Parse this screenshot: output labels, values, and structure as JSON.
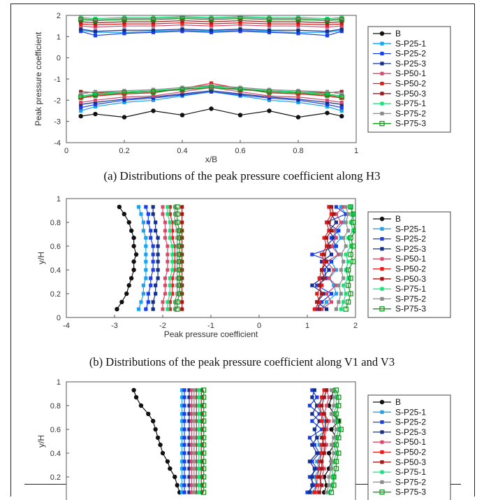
{
  "captions": {
    "a": "(a) Distributions of the peak pressure coefficient along H3",
    "b": "(b) Distributions of the peak pressure coefficient along V1 and V3"
  },
  "legend_entries": [
    "B",
    "S-P25-1",
    "S-P25-2",
    "S-P25-3",
    "S-P50-1",
    "S-P50-2",
    "S-P50-3",
    "S-P75-1",
    "S-P75-2",
    "S-P75-3"
  ],
  "series_colors": {
    "B": "#111111",
    "S-P25-1": "#1aa3f0",
    "S-P25-2": "#1a3fe8",
    "S-P25-3": "#15308c",
    "S-P50-1": "#d4486a",
    "S-P50-2": "#e31b1b",
    "S-P50-3": "#a01818",
    "S-P75-1": "#18e07a",
    "S-P75-2": "#8c8c8c",
    "S-P75-3": "#119a1a"
  },
  "chart_data": [
    {
      "type": "line",
      "panel": "a",
      "xlabel": "x/B",
      "ylabel": "Peak pressure coefficient",
      "xlim": [
        0,
        1
      ],
      "ylim": [
        -4,
        2
      ],
      "xticks": [
        "0",
        "0.2",
        "0.4",
        "0.6",
        "0.8",
        "1"
      ],
      "yticks": [
        "-4",
        "-3",
        "-2",
        "-1",
        "0",
        "1",
        "2"
      ],
      "x": [
        0.05,
        0.1,
        0.2,
        0.3,
        0.4,
        0.5,
        0.6,
        0.7,
        0.8,
        0.9,
        0.95
      ],
      "series": [
        {
          "name": "B",
          "neg": [
            -2.75,
            -2.65,
            -2.8,
            -2.5,
            -2.7,
            -2.4,
            -2.7,
            -2.5,
            -2.8,
            -2.6,
            -2.75
          ],
          "pos": null
        },
        {
          "name": "S-P25-1",
          "neg": [
            -2.5,
            -2.3,
            -2.1,
            -2.0,
            -1.8,
            -1.6,
            -1.8,
            -2.0,
            -2.1,
            -2.3,
            -2.5
          ],
          "pos": [
            1.3,
            1.2,
            1.2,
            1.25,
            1.3,
            1.25,
            1.3,
            1.25,
            1.2,
            1.2,
            1.3
          ]
        },
        {
          "name": "S-P25-2",
          "neg": [
            -2.35,
            -2.2,
            -2.0,
            -1.9,
            -1.75,
            -1.6,
            -1.75,
            -1.9,
            -2.0,
            -2.2,
            -2.35
          ],
          "pos": [
            1.25,
            1.05,
            1.15,
            1.2,
            1.25,
            1.2,
            1.25,
            1.2,
            1.15,
            1.05,
            1.25
          ]
        },
        {
          "name": "S-P25-3",
          "neg": [
            -2.2,
            -2.1,
            -1.95,
            -1.85,
            -1.7,
            -1.55,
            -1.7,
            -1.85,
            -1.95,
            -2.1,
            -2.2
          ],
          "pos": [
            1.35,
            1.25,
            1.3,
            1.3,
            1.35,
            1.3,
            1.35,
            1.3,
            1.3,
            1.25,
            1.35
          ]
        },
        {
          "name": "S-P50-1",
          "neg": [
            -2.1,
            -2.0,
            -1.85,
            -1.8,
            -1.6,
            -1.4,
            -1.6,
            -1.8,
            -1.85,
            -2.0,
            -2.1
          ],
          "pos": [
            1.5,
            1.45,
            1.5,
            1.5,
            1.55,
            1.5,
            1.55,
            1.5,
            1.5,
            1.45,
            1.5
          ]
        },
        {
          "name": "S-P50-2",
          "neg": [
            -1.9,
            -1.8,
            -1.7,
            -1.65,
            -1.45,
            -1.2,
            -1.45,
            -1.65,
            -1.7,
            -1.8,
            -1.9
          ],
          "pos": [
            1.6,
            1.55,
            1.6,
            1.6,
            1.65,
            1.6,
            1.65,
            1.6,
            1.6,
            1.55,
            1.6
          ]
        },
        {
          "name": "S-P50-3",
          "neg": [
            -1.6,
            -1.65,
            -1.6,
            -1.55,
            -1.5,
            -1.3,
            -1.5,
            -1.55,
            -1.6,
            -1.65,
            -1.6
          ],
          "pos": [
            1.7,
            1.65,
            1.7,
            1.7,
            1.75,
            1.7,
            1.75,
            1.7,
            1.7,
            1.65,
            1.7
          ]
        },
        {
          "name": "S-P75-1",
          "neg": [
            -1.8,
            -1.7,
            -1.6,
            -1.55,
            -1.45,
            -1.35,
            -1.45,
            -1.55,
            -1.6,
            -1.7,
            -1.8
          ],
          "pos": [
            1.9,
            1.85,
            1.9,
            1.9,
            1.95,
            1.9,
            1.95,
            1.9,
            1.9,
            1.85,
            1.9
          ]
        },
        {
          "name": "S-P75-2",
          "neg": [
            -1.7,
            -1.6,
            -1.55,
            -1.5,
            -1.4,
            -1.3,
            -1.4,
            -1.5,
            -1.55,
            -1.6,
            -1.7
          ],
          "pos": [
            1.85,
            1.8,
            1.85,
            1.85,
            1.9,
            1.85,
            1.9,
            1.85,
            1.85,
            1.8,
            1.85
          ]
        },
        {
          "name": "S-P75-3",
          "neg": [
            -1.85,
            -1.75,
            -1.65,
            -1.6,
            -1.5,
            -1.4,
            -1.5,
            -1.6,
            -1.65,
            -1.75,
            -1.85
          ],
          "pos": [
            1.8,
            1.75,
            1.8,
            1.8,
            1.85,
            1.8,
            1.85,
            1.8,
            1.8,
            1.75,
            1.8
          ]
        }
      ]
    },
    {
      "type": "line",
      "panel": "b",
      "xlabel": "Peak pressure coefficient",
      "ylabel": "y/H",
      "xlim": [
        -4,
        2
      ],
      "ylim": [
        0,
        1
      ],
      "xticks": [
        "-4",
        "-3",
        "-2",
        "-1",
        "0",
        "1",
        "2"
      ],
      "yticks": [
        "0",
        "0.2",
        "0.4",
        "0.6",
        "0.8",
        "1"
      ],
      "y": [
        0.07,
        0.13,
        0.2,
        0.27,
        0.33,
        0.4,
        0.47,
        0.53,
        0.6,
        0.67,
        0.73,
        0.8,
        0.87,
        0.93
      ],
      "series": [
        {
          "name": "B",
          "neg": [
            -2.95,
            -2.85,
            -2.75,
            -2.7,
            -2.65,
            -2.6,
            -2.6,
            -2.55,
            -2.6,
            -2.6,
            -2.65,
            -2.7,
            -2.8,
            -2.9
          ],
          "pos": null
        },
        {
          "name": "S-P25-1",
          "neg": [
            -2.5,
            -2.45,
            -2.4,
            -2.4,
            -2.35,
            -2.35,
            -2.35,
            -2.35,
            -2.35,
            -2.35,
            -2.4,
            -2.4,
            -2.45,
            -2.5
          ],
          "pos": [
            1.3,
            1.4,
            1.6,
            1.55,
            1.45,
            1.6,
            1.5,
            1.65,
            1.55,
            1.7,
            1.6,
            1.75,
            1.8,
            1.7
          ]
        },
        {
          "name": "S-P25-2",
          "neg": [
            -2.35,
            -2.3,
            -2.3,
            -2.25,
            -2.25,
            -2.2,
            -2.2,
            -2.2,
            -2.2,
            -2.25,
            -2.25,
            -2.3,
            -2.3,
            -2.35
          ],
          "pos": [
            1.2,
            1.3,
            1.5,
            1.2,
            1.4,
            1.35,
            1.5,
            1.1,
            1.6,
            1.5,
            1.65,
            1.4,
            1.8,
            1.6
          ]
        },
        {
          "name": "S-P25-3",
          "neg": [
            -2.2,
            -2.2,
            -2.15,
            -2.15,
            -2.1,
            -2.1,
            -2.1,
            -2.1,
            -2.1,
            -2.1,
            -2.15,
            -2.15,
            -2.2,
            -2.2
          ],
          "pos": [
            1.4,
            1.2,
            1.35,
            1.1,
            1.3,
            1.45,
            1.3,
            1.5,
            1.4,
            1.55,
            1.45,
            1.6,
            1.5,
            1.45
          ]
        },
        {
          "name": "S-P50-1",
          "neg": [
            -2.0,
            -2.0,
            -1.95,
            -1.95,
            -1.95,
            -1.9,
            -1.9,
            -1.9,
            -1.9,
            -1.95,
            -1.95,
            -1.95,
            -2.0,
            -2.0
          ],
          "pos": [
            1.3,
            1.5,
            1.4,
            1.6,
            1.45,
            1.55,
            1.4,
            1.65,
            1.5,
            1.6,
            1.55,
            1.7,
            1.6,
            1.75
          ]
        },
        {
          "name": "S-P50-2",
          "neg": [
            -1.85,
            -1.85,
            -1.8,
            -1.8,
            -1.8,
            -1.75,
            -1.75,
            -1.75,
            -1.75,
            -1.8,
            -1.8,
            -1.8,
            -1.85,
            -1.85
          ],
          "pos": [
            1.15,
            1.25,
            1.2,
            1.3,
            1.25,
            1.3,
            1.35,
            1.3,
            1.4,
            1.35,
            1.45,
            1.4,
            1.5,
            1.45
          ]
        },
        {
          "name": "S-P50-3",
          "neg": [
            -1.6,
            -1.6,
            -1.6,
            -1.6,
            -1.6,
            -1.6,
            -1.6,
            -1.6,
            -1.6,
            -1.6,
            -1.6,
            -1.6,
            -1.6,
            -1.6
          ],
          "pos": [
            1.25,
            1.2,
            1.3,
            1.25,
            1.35,
            1.3,
            1.4,
            1.35,
            1.45,
            1.4,
            1.5,
            1.45,
            1.55,
            1.5
          ]
        },
        {
          "name": "S-P75-1",
          "neg": [
            -1.9,
            -1.9,
            -1.85,
            -1.85,
            -1.85,
            -1.8,
            -1.8,
            -1.8,
            -1.8,
            -1.85,
            -1.85,
            -1.85,
            -1.9,
            -1.9
          ],
          "pos": [
            1.7,
            1.75,
            1.8,
            1.75,
            1.85,
            1.8,
            1.85,
            1.8,
            1.9,
            1.85,
            1.95,
            1.9,
            1.95,
            1.9
          ]
        },
        {
          "name": "S-P75-2",
          "neg": [
            -1.75,
            -1.75,
            -1.7,
            -1.7,
            -1.7,
            -1.7,
            -1.7,
            -1.7,
            -1.7,
            -1.7,
            -1.7,
            -1.75,
            -1.75,
            -1.75
          ],
          "pos": [
            1.6,
            1.65,
            1.7,
            1.65,
            1.75,
            1.7,
            1.75,
            1.7,
            1.8,
            1.75,
            1.85,
            1.8,
            1.85,
            1.8
          ]
        },
        {
          "name": "S-P75-3",
          "neg": [
            -1.7,
            -1.7,
            -1.65,
            -1.65,
            -1.65,
            -1.65,
            -1.65,
            -1.65,
            -1.65,
            -1.65,
            -1.65,
            -1.7,
            -1.7,
            -1.7
          ],
          "pos": [
            1.8,
            1.85,
            1.9,
            1.85,
            1.9,
            1.85,
            1.95,
            1.9,
            1.95,
            1.9,
            2.0,
            1.95,
            1.95,
            1.9
          ]
        }
      ]
    },
    {
      "type": "line",
      "panel": "c",
      "xlabel": "",
      "ylabel": "y/H",
      "xlim": [
        -4,
        2
      ],
      "ylim": [
        0,
        1
      ],
      "xticks": [],
      "yticks": [
        "0.2",
        "0.4",
        "0.6",
        "0.8",
        "1"
      ],
      "y": [
        0.07,
        0.13,
        0.2,
        0.27,
        0.33,
        0.4,
        0.47,
        0.53,
        0.6,
        0.67,
        0.73,
        0.8,
        0.87,
        0.93
      ],
      "series": [
        {
          "name": "B",
          "neg": [
            -1.65,
            -1.7,
            -1.75,
            -1.85,
            -1.9,
            -2.0,
            -2.05,
            -2.1,
            -2.15,
            -2.2,
            -2.3,
            -2.45,
            -2.55,
            -2.6
          ],
          "pos": [
            1.35,
            1.4,
            1.35,
            1.45,
            1.5,
            1.45,
            1.55,
            1.6,
            1.5,
            1.65,
            1.55,
            1.45,
            1.5,
            1.55
          ]
        },
        {
          "name": "S-P25-1",
          "neg": [
            -1.6,
            -1.6,
            -1.6,
            -1.6,
            -1.6,
            -1.6,
            -1.6,
            -1.6,
            -1.6,
            -1.6,
            -1.6,
            -1.6,
            -1.6,
            -1.6
          ],
          "pos": [
            1.1,
            1.2,
            1.15,
            1.25,
            1.2,
            1.3,
            1.25,
            1.2,
            1.4,
            1.35,
            1.3,
            1.2,
            1.35,
            1.4
          ]
        },
        {
          "name": "S-P25-2",
          "neg": [
            -1.55,
            -1.55,
            -1.55,
            -1.55,
            -1.55,
            -1.55,
            -1.55,
            -1.55,
            -1.55,
            -1.55,
            -1.55,
            -1.55,
            -1.55,
            -1.55
          ],
          "pos": [
            1.0,
            1.15,
            1.05,
            1.2,
            1.1,
            1.25,
            1.15,
            1.05,
            1.3,
            1.1,
            1.25,
            1.05,
            1.2,
            1.1
          ]
        },
        {
          "name": "S-P25-3",
          "neg": [
            -1.45,
            -1.45,
            -1.45,
            -1.45,
            -1.45,
            -1.45,
            -1.45,
            -1.45,
            -1.45,
            -1.45,
            -1.45,
            -1.45,
            -1.45,
            -1.45
          ],
          "pos": [
            1.05,
            1.1,
            1.1,
            1.15,
            1.05,
            1.2,
            1.1,
            1.2,
            1.15,
            1.25,
            1.1,
            1.2,
            1.1,
            1.15
          ]
        },
        {
          "name": "S-P50-1",
          "neg": [
            -1.4,
            -1.4,
            -1.4,
            -1.4,
            -1.4,
            -1.4,
            -1.4,
            -1.4,
            -1.4,
            -1.4,
            -1.4,
            -1.4,
            -1.4,
            -1.4
          ],
          "pos": [
            1.2,
            1.25,
            1.3,
            1.35,
            1.3,
            1.35,
            1.4,
            1.35,
            1.4,
            1.45,
            1.35,
            1.4,
            1.45,
            1.4
          ]
        },
        {
          "name": "S-P50-2",
          "neg": [
            -1.3,
            -1.3,
            -1.3,
            -1.3,
            -1.3,
            -1.3,
            -1.3,
            -1.3,
            -1.3,
            -1.3,
            -1.3,
            -1.3,
            -1.3,
            -1.3
          ],
          "pos": [
            1.15,
            1.2,
            1.2,
            1.25,
            1.25,
            1.3,
            1.3,
            1.35,
            1.35,
            1.3,
            1.3,
            1.25,
            1.3,
            1.35
          ]
        },
        {
          "name": "S-P50-3",
          "neg": [
            -1.2,
            -1.2,
            -1.2,
            -1.2,
            -1.2,
            -1.2,
            -1.2,
            -1.2,
            -1.2,
            -1.2,
            -1.2,
            -1.2,
            -1.2,
            -1.2
          ],
          "pos": [
            1.25,
            1.3,
            1.25,
            1.3,
            1.3,
            1.35,
            1.35,
            1.3,
            1.35,
            1.4,
            1.35,
            1.3,
            1.35,
            1.4
          ]
        },
        {
          "name": "S-P75-1",
          "neg": [
            -1.25,
            -1.25,
            -1.25,
            -1.25,
            -1.25,
            -1.25,
            -1.25,
            -1.25,
            -1.25,
            -1.25,
            -1.25,
            -1.25,
            -1.25,
            -1.25
          ],
          "pos": [
            1.45,
            1.5,
            1.55,
            1.5,
            1.55,
            1.6,
            1.55,
            1.6,
            1.65,
            1.6,
            1.55,
            1.6,
            1.6,
            1.55
          ]
        },
        {
          "name": "S-P75-2",
          "neg": [
            -1.35,
            -1.35,
            -1.35,
            -1.35,
            -1.35,
            -1.35,
            -1.35,
            -1.35,
            -1.35,
            -1.35,
            -1.35,
            -1.35,
            -1.35,
            -1.35
          ],
          "pos": [
            1.4,
            1.45,
            1.45,
            1.5,
            1.5,
            1.55,
            1.5,
            1.55,
            1.6,
            1.55,
            1.5,
            1.55,
            1.55,
            1.5
          ]
        },
        {
          "name": "S-P75-3",
          "neg": [
            -1.15,
            -1.15,
            -1.15,
            -1.15,
            -1.15,
            -1.15,
            -1.15,
            -1.15,
            -1.15,
            -1.15,
            -1.15,
            -1.15,
            -1.15,
            -1.15
          ],
          "pos": [
            1.5,
            1.55,
            1.55,
            1.6,
            1.6,
            1.65,
            1.6,
            1.65,
            1.7,
            1.65,
            1.6,
            1.65,
            1.65,
            1.6
          ]
        }
      ]
    }
  ]
}
